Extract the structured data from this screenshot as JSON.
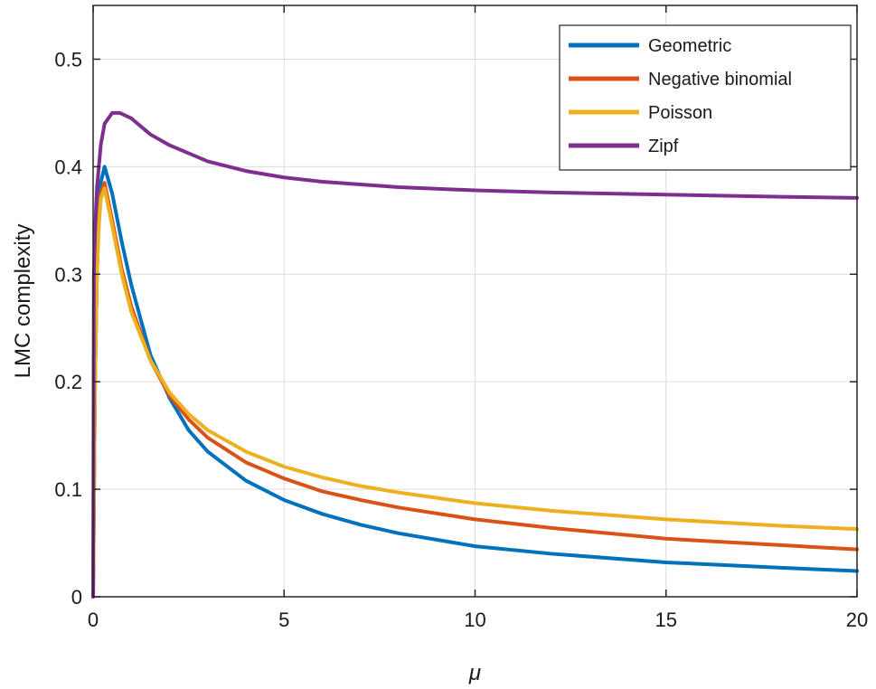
{
  "chart_data": {
    "type": "line",
    "title": "",
    "xlabel": "μ",
    "ylabel": "LMC complexity",
    "xlim": [
      0,
      20
    ],
    "ylim": [
      0,
      0.55
    ],
    "xticks": [
      0,
      5,
      10,
      15,
      20
    ],
    "yticks": [
      0,
      0.1,
      0.2,
      0.3,
      0.4,
      0.5
    ],
    "xtick_labels": [
      "0",
      "5",
      "10",
      "15",
      "20"
    ],
    "ytick_labels": [
      "0",
      "0.1",
      "0.2",
      "0.3",
      "0.4",
      "0.5"
    ],
    "grid": true,
    "legend_position": "top-right",
    "series": [
      {
        "name": "Geometric",
        "color": "#0072BD",
        "x": [
          0,
          0.05,
          0.1,
          0.15,
          0.2,
          0.3,
          0.5,
          0.75,
          1,
          1.5,
          2,
          2.5,
          3,
          4,
          5,
          6,
          7,
          8,
          10,
          12,
          15,
          18,
          20
        ],
        "y": [
          0,
          0.2,
          0.3,
          0.36,
          0.385,
          0.4,
          0.375,
          0.33,
          0.29,
          0.225,
          0.185,
          0.155,
          0.135,
          0.108,
          0.09,
          0.077,
          0.067,
          0.059,
          0.047,
          0.04,
          0.032,
          0.027,
          0.024
        ]
      },
      {
        "name": "Negative binomial",
        "color": "#D95319",
        "x": [
          0,
          0.05,
          0.1,
          0.15,
          0.2,
          0.3,
          0.5,
          0.75,
          1,
          1.5,
          2,
          2.5,
          3,
          4,
          5,
          6,
          7,
          8,
          10,
          12,
          15,
          18,
          20
        ],
        "y": [
          0,
          0.2,
          0.3,
          0.35,
          0.375,
          0.385,
          0.35,
          0.305,
          0.27,
          0.22,
          0.187,
          0.165,
          0.148,
          0.125,
          0.11,
          0.098,
          0.09,
          0.083,
          0.072,
          0.064,
          0.054,
          0.048,
          0.044
        ]
      },
      {
        "name": "Poisson",
        "color": "#EDB120",
        "x": [
          0,
          0.05,
          0.1,
          0.15,
          0.2,
          0.3,
          0.5,
          0.75,
          1,
          1.5,
          2,
          2.5,
          3,
          4,
          5,
          6,
          7,
          8,
          10,
          12,
          15,
          18,
          20
        ],
        "y": [
          0,
          0.2,
          0.3,
          0.345,
          0.37,
          0.38,
          0.345,
          0.3,
          0.265,
          0.22,
          0.19,
          0.17,
          0.155,
          0.135,
          0.121,
          0.111,
          0.103,
          0.097,
          0.087,
          0.08,
          0.072,
          0.066,
          0.063
        ]
      },
      {
        "name": "Zipf",
        "color": "#7E2F8E",
        "x": [
          0,
          0.02,
          0.05,
          0.1,
          0.2,
          0.3,
          0.5,
          0.7,
          1,
          1.5,
          2,
          3,
          4,
          5,
          6,
          8,
          10,
          12,
          15,
          18,
          20
        ],
        "y": [
          0,
          0.3,
          0.34,
          0.38,
          0.42,
          0.44,
          0.45,
          0.45,
          0.445,
          0.43,
          0.42,
          0.405,
          0.396,
          0.39,
          0.386,
          0.381,
          0.378,
          0.376,
          0.374,
          0.372,
          0.371
        ]
      }
    ]
  }
}
